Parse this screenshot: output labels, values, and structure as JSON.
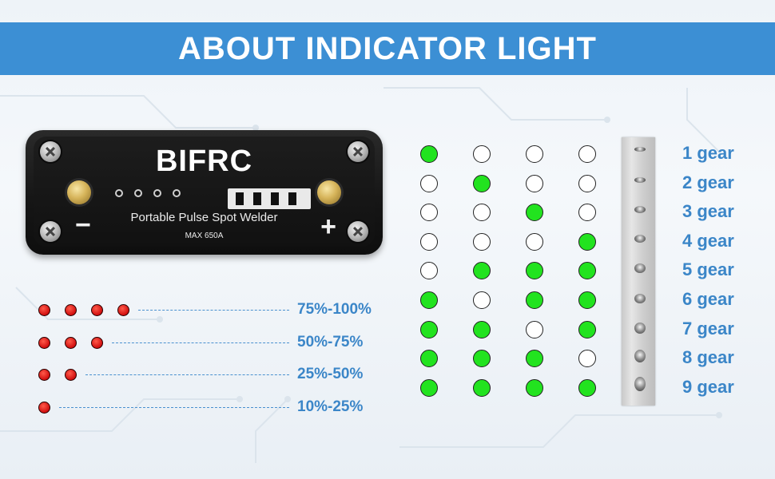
{
  "header": {
    "title": "ABOUT INDICATOR LIGHT"
  },
  "device": {
    "brand": "BIFRC",
    "name": "Portable Pulse Spot Welder",
    "rating": "MAX 650A",
    "minus_sign": "−",
    "plus_sign": "+"
  },
  "battery_levels": [
    {
      "dots": 4,
      "label": "75%-100%"
    },
    {
      "dots": 3,
      "label": "50%-75%"
    },
    {
      "dots": 2,
      "label": "25%-50%"
    },
    {
      "dots": 1,
      "label": "10%-25%"
    }
  ],
  "gears": [
    {
      "label": "1 gear",
      "lights": [
        true,
        false,
        false,
        false
      ]
    },
    {
      "label": "2 gear",
      "lights": [
        false,
        true,
        false,
        false
      ]
    },
    {
      "label": "3 gear",
      "lights": [
        false,
        false,
        true,
        false
      ]
    },
    {
      "label": "4 gear",
      "lights": [
        false,
        false,
        false,
        true
      ]
    },
    {
      "label": "5 gear",
      "lights": [
        false,
        true,
        true,
        true
      ]
    },
    {
      "label": "6 gear",
      "lights": [
        true,
        false,
        true,
        true
      ]
    },
    {
      "label": "7 gear",
      "lights": [
        true,
        true,
        false,
        true
      ]
    },
    {
      "label": "8 gear",
      "lights": [
        true,
        true,
        true,
        false
      ]
    },
    {
      "label": "9 gear",
      "lights": [
        true,
        true,
        true,
        true
      ]
    }
  ],
  "colors": {
    "accent": "#3c8fd4",
    "label_blue": "#3b86c8",
    "led_on_green": "#22e31f",
    "battery_red": "#d10f0f"
  }
}
